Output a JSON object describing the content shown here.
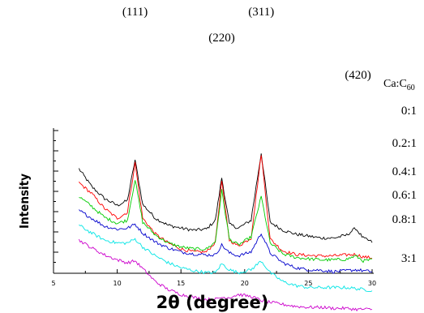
{
  "chart_data": {
    "type": "line",
    "xlabel": "2θ (degree)",
    "ylabel": "Intensity",
    "xlim": [
      5,
      30
    ],
    "x_ticks": [
      "5",
      "10",
      "15",
      "20",
      "25",
      "30"
    ],
    "y_ticks_labeled": false,
    "grid": false,
    "legend_title": "Ca:C",
    "legend_title_subscript": "60",
    "legend_placement": "right, labels beside each curve",
    "peaks": [
      {
        "label": "(111)",
        "x": 11.4
      },
      {
        "label": "(220)",
        "x": 18.2
      },
      {
        "label": "(311)",
        "x": 21.3
      },
      {
        "label": "(420)",
        "x": 28.7
      }
    ],
    "x": [
      7,
      8,
      9,
      10,
      10.8,
      11.4,
      12,
      13,
      14,
      15,
      16,
      17,
      17.7,
      18.2,
      18.8,
      19.5,
      20.5,
      21.3,
      22,
      23,
      24,
      25,
      26,
      27,
      28,
      28.7,
      29.3,
      30
    ],
    "series": [
      {
        "name": "0:1",
        "color": "#000000",
        "values": [
          9.0,
          7.2,
          6.0,
          5.3,
          5.8,
          9.9,
          5.4,
          4.0,
          3.3,
          3.0,
          2.8,
          2.9,
          3.8,
          8.1,
          3.4,
          3.0,
          3.8,
          10.6,
          3.6,
          2.8,
          2.4,
          2.2,
          2.0,
          2.0,
          2.3,
          3.0,
          2.0,
          1.6
        ]
      },
      {
        "name": "0.2:1",
        "color": "#ff0000",
        "values": [
          7.6,
          6.5,
          5.0,
          4.0,
          4.6,
          9.6,
          4.0,
          2.4,
          1.5,
          0.9,
          0.6,
          0.6,
          1.6,
          7.8,
          1.8,
          1.2,
          2.0,
          10.5,
          1.9,
          0.7,
          0.35,
          0.25,
          0.2,
          0.2,
          0.3,
          0.35,
          0.1,
          0.0
        ]
      },
      {
        "name": "0.2:1 (green)",
        "color": "#00cc00",
        "values": [
          6.2,
          5.2,
          4.1,
          3.5,
          3.8,
          7.9,
          3.6,
          2.3,
          1.5,
          1.1,
          0.9,
          0.9,
          1.6,
          6.8,
          1.9,
          1.3,
          2.1,
          6.2,
          1.5,
          0.4,
          0.05,
          -0.1,
          -0.2,
          -0.2,
          -0.15,
          0.2,
          -0.3,
          -0.2
        ]
      },
      {
        "name": "0.4:1",
        "color": "#0000cc",
        "values": [
          4.8,
          4.0,
          3.2,
          2.9,
          3.0,
          3.4,
          2.5,
          1.6,
          1.0,
          0.6,
          0.4,
          0.3,
          0.3,
          1.3,
          0.5,
          0.2,
          0.6,
          2.5,
          0.5,
          -0.5,
          -1.0,
          -1.2,
          -1.25,
          -1.4,
          -1.3,
          -1.2,
          -1.3,
          -1.4
        ]
      },
      {
        "name": "0.6:1",
        "color": "#00e5e5",
        "values": [
          3.3,
          2.5,
          1.8,
          1.5,
          1.5,
          1.9,
          1.1,
          0.2,
          -0.5,
          -1.0,
          -1.3,
          -1.5,
          -1.5,
          -0.6,
          -1.2,
          -1.5,
          -1.2,
          -0.3,
          -1.5,
          -2.4,
          -2.8,
          -3.0,
          -3.0,
          -3.0,
          -3.0,
          -3.1,
          -3.2,
          -3.3
        ]
      },
      {
        "name": "0.8:1",
        "color": "#cc00cc",
        "values": [
          1.8,
          1.0,
          0.3,
          -0.2,
          -0.5,
          -0.3,
          -1.1,
          -2.4,
          -3.2,
          -3.7,
          -4.0,
          -4.2,
          -4.2,
          -4.0,
          -4.0,
          -3.7,
          -3.9,
          -4.3,
          -4.5,
          -4.7,
          -4.9,
          -5.0,
          -5.0,
          -5.1,
          -5.1,
          -5.2,
          -5.2,
          -5.2
        ]
      }
    ],
    "curve_labels": [
      "0:1",
      "0.2:1",
      "0.4:1",
      "0.6:1",
      "0.8:1",
      "3:1"
    ]
  }
}
